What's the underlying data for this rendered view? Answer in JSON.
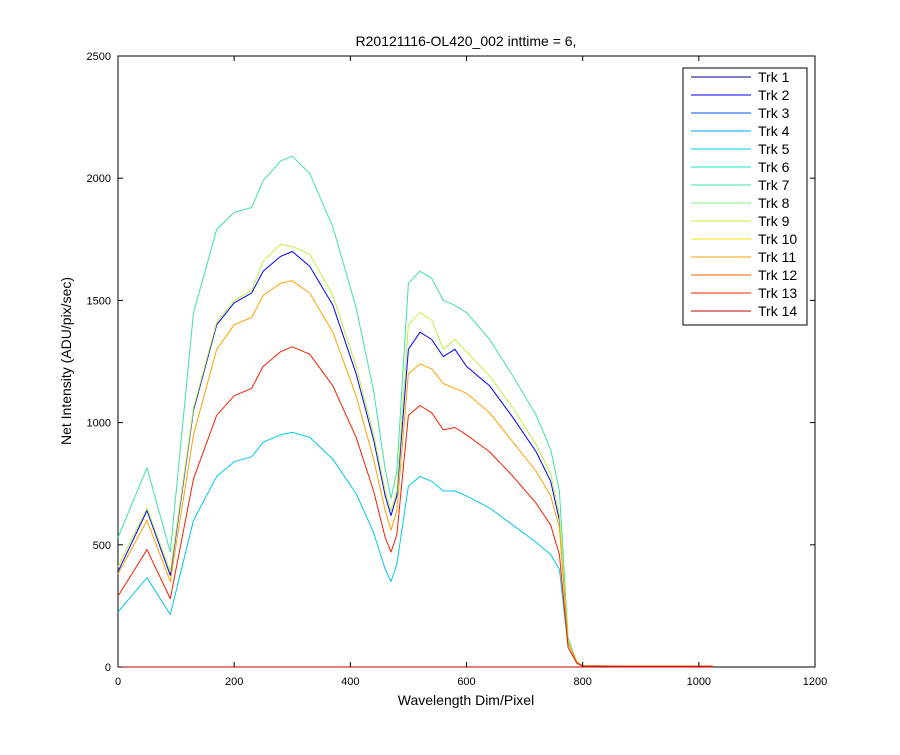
{
  "chart_data": {
    "type": "line",
    "title": "R20121116-OL420_002 inttime = 6,",
    "xlabel": "Wavelength Dim/Pixel",
    "ylabel": "Net Intensity (ADU/pix/sec)",
    "xlim": [
      0,
      1200
    ],
    "ylim": [
      0,
      2500
    ],
    "xticks": [
      0,
      200,
      400,
      600,
      800,
      1000,
      1200
    ],
    "yticks": [
      0,
      500,
      1000,
      1500,
      2000,
      2500
    ],
    "xtick_labels": [
      "0",
      "200",
      "400",
      "600",
      "800",
      "1000",
      "1200"
    ],
    "ytick_labels": [
      "0",
      "500",
      "1000",
      "1500",
      "2000",
      "2500"
    ],
    "grid": false,
    "legend_position": "top-right",
    "x": [
      0,
      50,
      90,
      130,
      170,
      200,
      230,
      250,
      280,
      300,
      330,
      370,
      410,
      440,
      460,
      470,
      480,
      500,
      520,
      540,
      560,
      580,
      600,
      640,
      680,
      720,
      745,
      760,
      775,
      790,
      800,
      850,
      900,
      1000,
      1024
    ],
    "series": [
      {
        "name": "Trk 1",
        "color": "#000090",
        "values": [
          0,
          0,
          0,
          0,
          0,
          0,
          0,
          0,
          0,
          0,
          0,
          0,
          0,
          0,
          0,
          0,
          0,
          0,
          0,
          0,
          0,
          0,
          0,
          0,
          0,
          0,
          0,
          0,
          0,
          0,
          0,
          0,
          0,
          0,
          0
        ]
      },
      {
        "name": "Trk 2",
        "color": "#0000ff",
        "values": [
          390,
          640,
          375,
          1050,
          1400,
          1490,
          1530,
          1620,
          1680,
          1700,
          1640,
          1480,
          1200,
          930,
          700,
          620,
          700,
          1300,
          1370,
          1340,
          1270,
          1300,
          1230,
          1150,
          1020,
          880,
          760,
          600,
          100,
          20,
          5,
          4,
          3,
          3,
          3
        ]
      },
      {
        "name": "Trk 3",
        "color": "#0050ff",
        "values": [
          0,
          0,
          0,
          0,
          0,
          0,
          0,
          0,
          0,
          0,
          0,
          0,
          0,
          0,
          0,
          0,
          0,
          0,
          0,
          0,
          0,
          0,
          0,
          0,
          0,
          0,
          0,
          0,
          0,
          0,
          0,
          0,
          0,
          0,
          0
        ]
      },
      {
        "name": "Trk 4",
        "color": "#00a0ff",
        "values": [
          0,
          0,
          0,
          0,
          0,
          0,
          0,
          0,
          0,
          0,
          0,
          0,
          0,
          0,
          0,
          0,
          0,
          0,
          0,
          0,
          0,
          0,
          0,
          0,
          0,
          0,
          0,
          0,
          0,
          0,
          0,
          0,
          0,
          0,
          0
        ]
      },
      {
        "name": "Trk 5",
        "color": "#00c8e8",
        "values": [
          225,
          365,
          215,
          600,
          780,
          840,
          860,
          920,
          950,
          960,
          940,
          850,
          710,
          550,
          400,
          350,
          420,
          740,
          780,
          760,
          720,
          720,
          700,
          650,
          580,
          510,
          460,
          400,
          80,
          15,
          3,
          2,
          2,
          2,
          2
        ]
      },
      {
        "name": "Trk 6",
        "color": "#10e8c8",
        "values": [
          0,
          0,
          0,
          0,
          0,
          0,
          0,
          0,
          0,
          0,
          0,
          0,
          0,
          0,
          0,
          0,
          0,
          0,
          0,
          0,
          0,
          0,
          0,
          0,
          0,
          0,
          0,
          0,
          0,
          0,
          0,
          0,
          0,
          0,
          0
        ]
      },
      {
        "name": "Trk 7",
        "color": "#40e0a8",
        "values": [
          530,
          815,
          470,
          1450,
          1790,
          1860,
          1880,
          1990,
          2070,
          2090,
          2020,
          1800,
          1470,
          1130,
          810,
          690,
          800,
          1570,
          1620,
          1590,
          1500,
          1480,
          1450,
          1340,
          1190,
          1030,
          890,
          720,
          120,
          20,
          5,
          4,
          3,
          3,
          3
        ]
      },
      {
        "name": "Trk 8",
        "color": "#80f080",
        "values": [
          0,
          0,
          0,
          0,
          0,
          0,
          0,
          0,
          0,
          0,
          0,
          0,
          0,
          0,
          0,
          0,
          0,
          0,
          0,
          0,
          0,
          0,
          0,
          0,
          0,
          0,
          0,
          0,
          0,
          0,
          0,
          0,
          0,
          0,
          0
        ]
      },
      {
        "name": "Trk 9",
        "color": "#c0f040",
        "values": [
          410,
          650,
          390,
          1060,
          1410,
          1500,
          1540,
          1660,
          1730,
          1720,
          1690,
          1520,
          1230,
          950,
          720,
          640,
          720,
          1400,
          1450,
          1420,
          1300,
          1340,
          1290,
          1190,
          1060,
          910,
          790,
          620,
          110,
          20,
          5,
          4,
          3,
          3,
          3
        ]
      },
      {
        "name": "Trk 10",
        "color": "#f0e000",
        "values": [
          0,
          0,
          0,
          0,
          0,
          0,
          0,
          0,
          0,
          0,
          0,
          0,
          0,
          0,
          0,
          0,
          0,
          0,
          0,
          0,
          0,
          0,
          0,
          0,
          0,
          0,
          0,
          0,
          0,
          0,
          0,
          0,
          0,
          0,
          0
        ]
      },
      {
        "name": "Trk 11",
        "color": "#ffa000",
        "values": [
          380,
          600,
          350,
          950,
          1300,
          1400,
          1430,
          1520,
          1570,
          1580,
          1530,
          1370,
          1110,
          850,
          640,
          560,
          640,
          1200,
          1240,
          1220,
          1160,
          1140,
          1120,
          1040,
          920,
          800,
          700,
          570,
          100,
          20,
          5,
          4,
          3,
          3,
          3
        ]
      },
      {
        "name": "Trk 12",
        "color": "#ff6000",
        "values": [
          0,
          0,
          0,
          0,
          0,
          0,
          0,
          0,
          0,
          0,
          0,
          0,
          0,
          0,
          0,
          0,
          0,
          0,
          0,
          0,
          0,
          0,
          0,
          0,
          0,
          0,
          0,
          0,
          0,
          0,
          0,
          0,
          0,
          0,
          0
        ]
      },
      {
        "name": "Trk 13",
        "color": "#f02000",
        "values": [
          290,
          480,
          280,
          770,
          1030,
          1110,
          1140,
          1230,
          1290,
          1310,
          1280,
          1150,
          940,
          720,
          530,
          470,
          540,
          1030,
          1070,
          1040,
          970,
          980,
          950,
          880,
          780,
          670,
          580,
          460,
          80,
          15,
          3,
          3,
          3,
          3,
          3
        ]
      },
      {
        "name": "Trk 14",
        "color": "#c00000",
        "values": [
          0,
          0,
          0,
          0,
          0,
          0,
          0,
          0,
          0,
          0,
          0,
          0,
          0,
          0,
          0,
          0,
          0,
          0,
          0,
          0,
          0,
          0,
          0,
          0,
          0,
          0,
          0,
          0,
          0,
          0,
          0,
          0,
          0,
          0,
          0
        ]
      }
    ]
  }
}
